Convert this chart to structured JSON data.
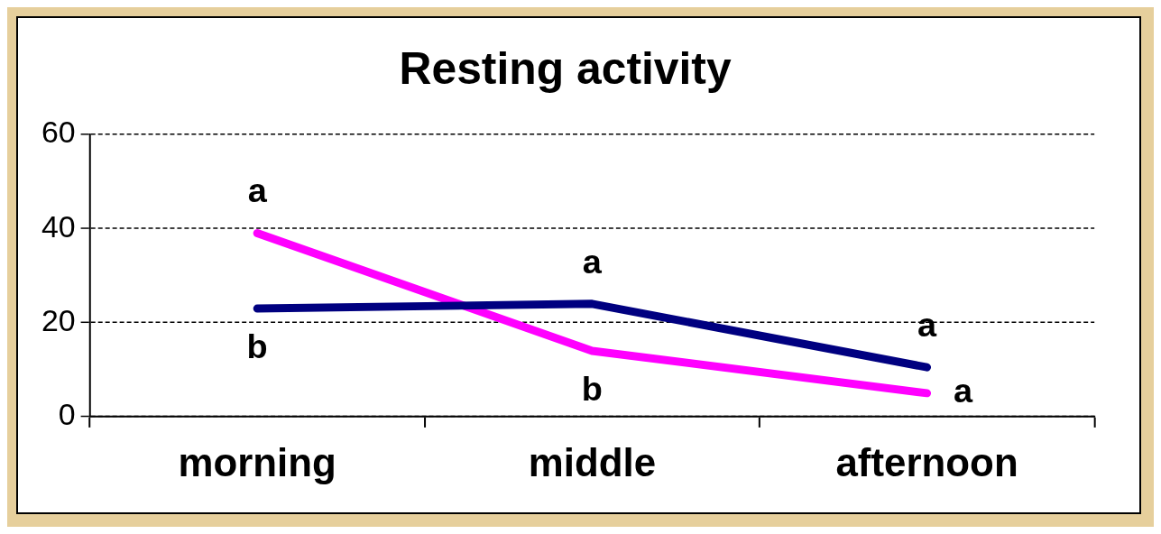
{
  "chart_data": {
    "type": "line",
    "title": "Resting activity",
    "categories": [
      "morning",
      "middle",
      "afternoon"
    ],
    "series": [
      {
        "color": "#000080",
        "values": [
          23,
          24,
          10.5
        ]
      },
      {
        "color": "#ff00ff",
        "values": [
          39,
          14,
          5
        ]
      }
    ],
    "ylim": [
      0,
      60
    ],
    "yticks": [
      0,
      20,
      40,
      60
    ],
    "grid": "y",
    "legend": false,
    "marker": "none",
    "line_style": "solid",
    "annotations": [
      {
        "text": "a",
        "x": "morning",
        "y": 39
      },
      {
        "text": "b",
        "x": "morning",
        "y": 23
      },
      {
        "text": "a",
        "x": "middle",
        "y": 24
      },
      {
        "text": "b",
        "x": "middle",
        "y": 14
      },
      {
        "text": "a",
        "x": "afternoon",
        "y": 10.5
      },
      {
        "text": "a",
        "x": "afternoon",
        "y": 5
      }
    ]
  }
}
